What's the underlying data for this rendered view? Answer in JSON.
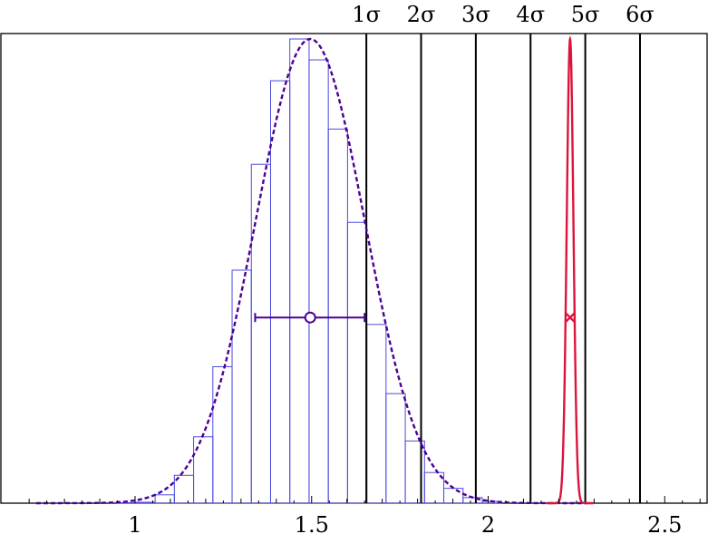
{
  "chart_data": {
    "type": "histogram",
    "xlim": [
      0.62,
      2.62
    ],
    "ylim": [
      0,
      1
    ],
    "x_ticks": [
      {
        "value": 1,
        "label": "1"
      },
      {
        "value": 1.5,
        "label": "1.5"
      },
      {
        "value": 2,
        "label": "2"
      },
      {
        "value": 2.5,
        "label": "2.5"
      }
    ],
    "histogram": {
      "color": "#4b4bdf",
      "bin_width": 0.0545,
      "bins": [
        {
          "x": 0.975,
          "h": 0.001
        },
        {
          "x": 1.0295,
          "h": 0.002
        },
        {
          "x": 1.084,
          "h": 0.018
        },
        {
          "x": 1.1385,
          "h": 0.06
        },
        {
          "x": 1.193,
          "h": 0.143
        },
        {
          "x": 1.2475,
          "h": 0.294
        },
        {
          "x": 1.302,
          "h": 0.502
        },
        {
          "x": 1.3565,
          "h": 0.73
        },
        {
          "x": 1.411,
          "h": 0.91
        },
        {
          "x": 1.4655,
          "h": 1.0
        },
        {
          "x": 1.52,
          "h": 0.955
        },
        {
          "x": 1.5745,
          "h": 0.806
        },
        {
          "x": 1.629,
          "h": 0.605
        },
        {
          "x": 1.6835,
          "h": 0.385
        },
        {
          "x": 1.738,
          "h": 0.236
        },
        {
          "x": 1.7925,
          "h": 0.134
        },
        {
          "x": 1.847,
          "h": 0.066
        },
        {
          "x": 1.9015,
          "h": 0.032
        },
        {
          "x": 1.956,
          "h": 0.012
        },
        {
          "x": 2.0105,
          "h": 0.004
        }
      ]
    },
    "fit_curve": {
      "mu": 1.496,
      "sigma": 0.155,
      "peak": 1.0,
      "color": "#4b0096",
      "style": "dashed"
    },
    "estimate": {
      "value": 1.496,
      "err_low": 1.34,
      "err_high": 1.65,
      "y": 0.4,
      "marker": "circle",
      "color": "#4b0096"
    },
    "measurement": {
      "value": 2.232,
      "sigma": 0.0095,
      "peak": 1.0,
      "marker": "cross",
      "marker_y": 0.4,
      "color": "#dc143c"
    },
    "sigma_lines": [
      {
        "x": 1.655,
        "label": "1σ"
      },
      {
        "x": 1.81,
        "label": "2σ"
      },
      {
        "x": 1.965,
        "label": "3σ"
      },
      {
        "x": 2.12,
        "label": "4σ"
      },
      {
        "x": 2.275,
        "label": "5σ"
      },
      {
        "x": 2.43,
        "label": "6σ"
      }
    ]
  }
}
